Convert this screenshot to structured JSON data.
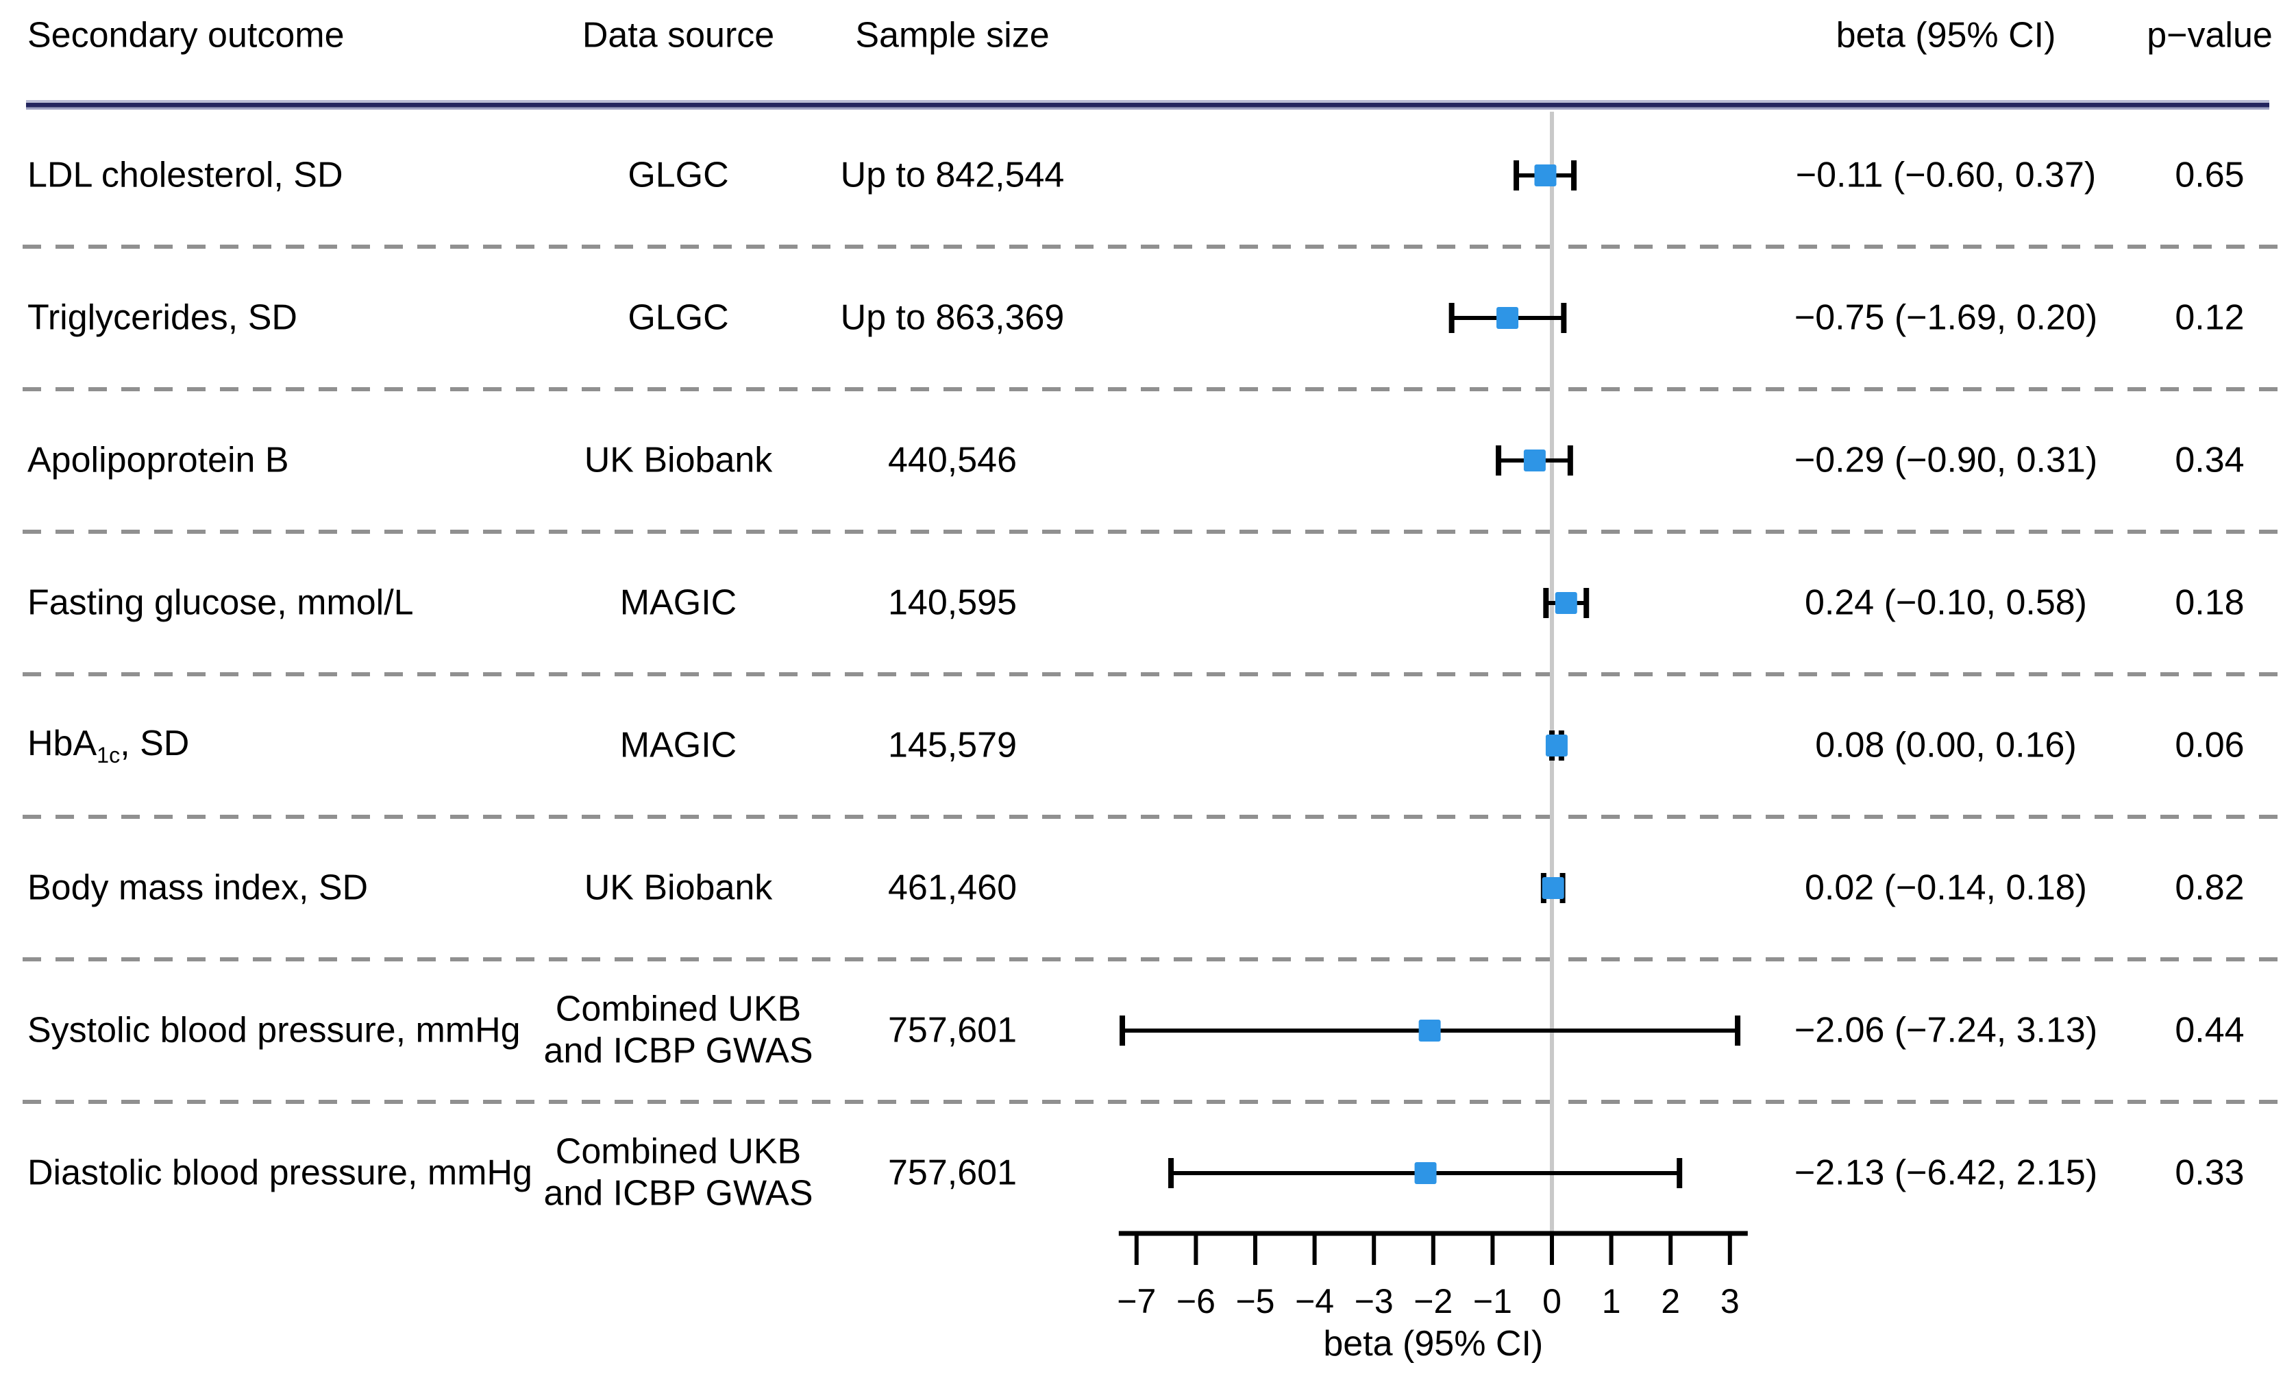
{
  "header": {
    "outcome": "Secondary outcome",
    "source": "Data source",
    "sample": "Sample size",
    "beta": "beta (95% CI)",
    "pvalue": "p−value"
  },
  "colors": {
    "marker_blue": "#2E95E6",
    "header_rule_core": "#23255e",
    "header_rule_halo": "#b9bcd4",
    "separator_gray": "#909090",
    "zero_line_gray": "#c9c9c9",
    "axis_black": "#000000"
  },
  "chart_data": {
    "type": "forest",
    "title": "",
    "xlabel": "beta (95% CI)",
    "xlim": [
      -7,
      3
    ],
    "ticks": [
      -7,
      -6,
      -5,
      -4,
      -3,
      -2,
      -1,
      0,
      1,
      2,
      3
    ],
    "reference_line_x": 0,
    "legend_position": "none",
    "grid": false,
    "rows": [
      {
        "outcome": "LDL cholesterol, SD",
        "source": "GLGC",
        "sample": "Up to 842,544",
        "beta": -0.11,
        "ci_low": -0.6,
        "ci_high": 0.37,
        "beta_text": "−0.11 (−0.60, 0.37)",
        "pvalue": "0.65"
      },
      {
        "outcome": "Triglycerides, SD",
        "source": "GLGC",
        "sample": "Up to 863,369",
        "beta": -0.75,
        "ci_low": -1.69,
        "ci_high": 0.2,
        "beta_text": "−0.75 (−1.69, 0.20)",
        "pvalue": "0.12"
      },
      {
        "outcome": "Apolipoprotein B",
        "source": "UK Biobank",
        "sample": "440,546",
        "beta": -0.29,
        "ci_low": -0.9,
        "ci_high": 0.31,
        "beta_text": "−0.29 (−0.90, 0.31)",
        "pvalue": "0.34"
      },
      {
        "outcome": "Fasting glucose, mmol/L",
        "source": "MAGIC",
        "sample": "140,595",
        "beta": 0.24,
        "ci_low": -0.1,
        "ci_high": 0.58,
        "beta_text": "0.24 (−0.10, 0.58)",
        "pvalue": "0.18"
      },
      {
        "outcome": "HbA1c, SD",
        "outcome_parts": {
          "pre": "HbA",
          "sub": "1c",
          "post": ", SD"
        },
        "source": "MAGIC",
        "sample": "145,579",
        "beta": 0.08,
        "ci_low": 0.0,
        "ci_high": 0.16,
        "beta_text": "0.08 (0.00, 0.16)",
        "pvalue": "0.06"
      },
      {
        "outcome": "Body mass index, SD",
        "source": "UK Biobank",
        "sample": "461,460",
        "beta": 0.02,
        "ci_low": -0.14,
        "ci_high": 0.18,
        "beta_text": "0.02 (−0.14, 0.18)",
        "pvalue": "0.82"
      },
      {
        "outcome": "Systolic blood pressure, mmHg",
        "source": "Combined UKB\nand ICBP GWAS",
        "sample": "757,601",
        "beta": -2.06,
        "ci_low": -7.24,
        "ci_high": 3.13,
        "beta_text": "−2.06 (−7.24, 3.13)",
        "pvalue": "0.44"
      },
      {
        "outcome": "Diastolic blood pressure, mmHg",
        "source": "Combined UKB\nand ICBP GWAS",
        "sample": "757,601",
        "beta": -2.13,
        "ci_low": -6.42,
        "ci_high": 2.15,
        "beta_text": "−2.13 (−6.42, 2.15)",
        "pvalue": "0.33"
      }
    ]
  }
}
